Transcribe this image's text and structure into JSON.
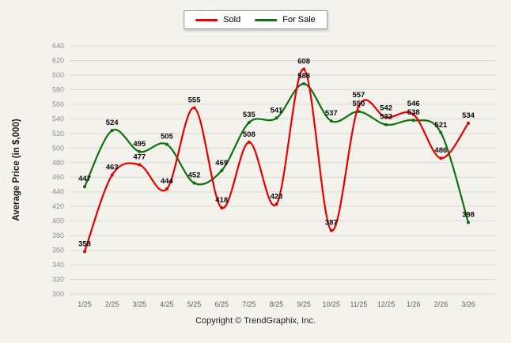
{
  "axis": {
    "ylabel": "Average Price (in $,000)"
  },
  "footer": {
    "copyright": "Copyright © TrendGraphix, Inc."
  },
  "chart_data": {
    "type": "line",
    "title": "",
    "xlabel": "",
    "ylabel": "Average Price (in $,000)",
    "categories": [
      "1/25",
      "2/25",
      "3/25",
      "4/25",
      "5/25",
      "6/25",
      "7/25",
      "8/25",
      "9/25",
      "10/25",
      "11/25",
      "12/25",
      "1/26",
      "2/26",
      "3/26"
    ],
    "series": [
      {
        "name": "Sold",
        "color": "#e60000",
        "values": [
          358,
          463,
          477,
          444,
          555,
          418,
          508,
          423,
          608,
          387,
          557,
          542,
          546,
          486,
          534
        ]
      },
      {
        "name": "For Sale",
        "color": "#0e700e",
        "values": [
          447,
          524,
          495,
          505,
          452,
          469,
          535,
          541,
          588,
          537,
          550,
          532,
          538,
          521,
          398
        ]
      }
    ],
    "ylim": [
      300,
      640
    ],
    "ytick_step": 20,
    "grid": true,
    "smooth": true,
    "legend_position": "top-center"
  }
}
